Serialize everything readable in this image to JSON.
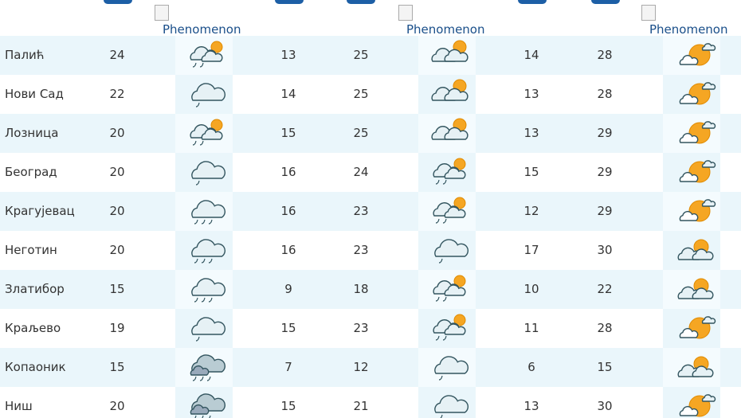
{
  "table": {
    "header": [
      "Phenomenon",
      "Phenomenon",
      "Phenomenon"
    ],
    "rows": [
      [
        "Палић",
        24,
        13,
        25,
        14,
        28
      ],
      [
        "Нови Сад",
        22,
        14,
        25,
        13,
        28
      ],
      [
        "Лозница",
        20,
        15,
        25,
        13,
        29
      ],
      [
        "Београд",
        20,
        16,
        24,
        15,
        29
      ],
      [
        "Крагујевац",
        20,
        16,
        23,
        12,
        29
      ],
      [
        "Неготин",
        20,
        16,
        23,
        17,
        30
      ],
      [
        "Златибор",
        15,
        9,
        18,
        10,
        22
      ],
      [
        "Краљево",
        19,
        15,
        23,
        11,
        28
      ],
      [
        "Копаоник",
        15,
        7,
        12,
        6,
        15
      ],
      [
        "Ниш",
        20,
        15,
        21,
        13,
        30
      ]
    ]
  }
}
